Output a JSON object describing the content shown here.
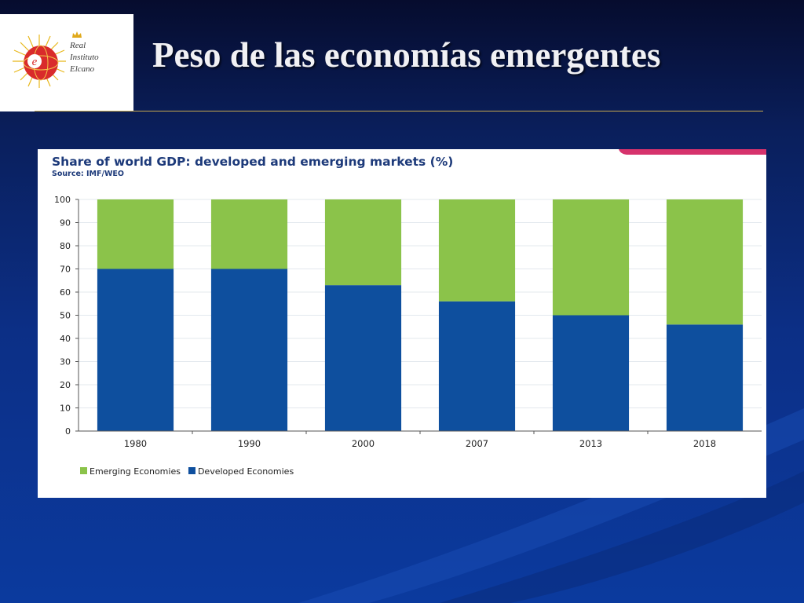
{
  "slide": {
    "title": "Peso de las economías emergentes"
  },
  "logo": {
    "lines": [
      "Real",
      "Instituto",
      "Elcano"
    ],
    "emblem_letter": "e"
  },
  "colors": {
    "emerging": "#8bc34a",
    "developed": "#0e4f9e",
    "accent_bar": "#d6336c",
    "title_rule": "#c7a94e"
  },
  "chart_data": {
    "type": "bar",
    "stacked": true,
    "title": "Share of world GDP: developed and emerging markets (%)",
    "subtitle": "Source: IMF/WEO",
    "categories": [
      "1980",
      "1990",
      "2000",
      "2007",
      "2013",
      "2018"
    ],
    "series": [
      {
        "name": "Developed Economies",
        "values": [
          70,
          70,
          63,
          56,
          50,
          46
        ]
      },
      {
        "name": "Emerging Economies",
        "values": [
          30,
          30,
          37,
          44,
          50,
          54
        ]
      }
    ],
    "ylim": [
      0,
      100
    ],
    "yticks": [
      0,
      10,
      20,
      30,
      40,
      50,
      60,
      70,
      80,
      90,
      100
    ],
    "xlabel": "",
    "ylabel": "",
    "grid": true,
    "legend": [
      "Emerging Economies",
      "Developed Economies"
    ],
    "legend_position": "bottom-left"
  }
}
